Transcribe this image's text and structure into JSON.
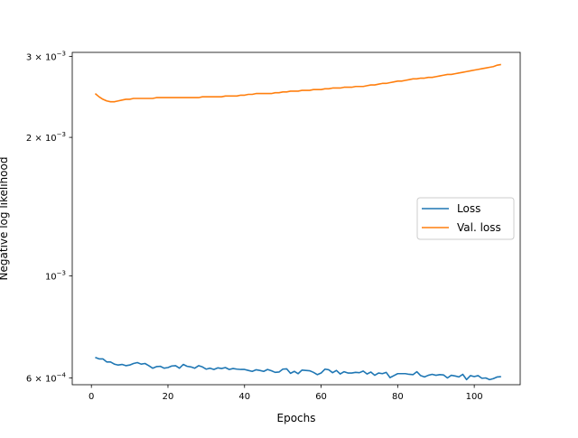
{
  "chart_data": {
    "type": "line",
    "title": "",
    "xlabel": "Epochs",
    "ylabel": "Negative log likelihood",
    "xlim": [
      -5,
      112
    ],
    "ylim": [
      0.00058,
      0.00306
    ],
    "yscale": "log",
    "grid": false,
    "legend_position": "center-right",
    "xticks": [
      0,
      20,
      40,
      60,
      80,
      100
    ],
    "xtick_labels": [
      "0",
      "20",
      "40",
      "60",
      "80",
      "100"
    ],
    "yticks": [
      0.0006,
      0.001,
      0.002,
      0.003
    ],
    "ytick_labels": [
      {
        "base": "6 × 10",
        "exp": "−4"
      },
      {
        "base": "10",
        "exp": "−3"
      },
      {
        "base": "2 × 10",
        "exp": "−3"
      },
      {
        "base": "3 × 10",
        "exp": "−3"
      }
    ],
    "series": [
      {
        "name": "Loss",
        "color": "#1f77b4",
        "x": [
          1,
          2,
          3,
          4,
          5,
          6,
          7,
          8,
          9,
          10,
          11,
          12,
          13,
          14,
          15,
          16,
          17,
          18,
          19,
          20,
          21,
          22,
          23,
          24,
          25,
          26,
          27,
          28,
          29,
          30,
          31,
          32,
          33,
          34,
          35,
          36,
          37,
          38,
          39,
          40,
          41,
          42,
          43,
          44,
          45,
          46,
          47,
          48,
          49,
          50,
          51,
          52,
          53,
          54,
          55,
          56,
          57,
          58,
          59,
          60,
          61,
          62,
          63,
          64,
          65,
          66,
          67,
          68,
          69,
          70,
          71,
          72,
          73,
          74,
          75,
          76,
          77,
          78,
          79,
          80,
          81,
          82,
          83,
          84,
          85,
          86,
          87,
          88,
          89,
          90,
          91,
          92,
          93,
          94,
          95,
          96,
          97,
          98,
          99,
          100,
          101,
          102,
          103,
          104,
          105,
          106,
          107
        ],
        "values": [
          0.000665,
          0.00066,
          0.00066,
          0.00065,
          0.00065,
          0.000643,
          0.00064,
          0.000642,
          0.000638,
          0.00064,
          0.000645,
          0.000648,
          0.000643,
          0.000645,
          0.000638,
          0.00063,
          0.000635,
          0.000636,
          0.00063,
          0.000632,
          0.000637,
          0.000638,
          0.00063,
          0.000642,
          0.000636,
          0.000634,
          0.00063,
          0.000638,
          0.000634,
          0.000627,
          0.00063,
          0.000626,
          0.000631,
          0.000629,
          0.000632,
          0.000626,
          0.000629,
          0.000627,
          0.000626,
          0.000626,
          0.000623,
          0.00062,
          0.000625,
          0.000623,
          0.00062,
          0.000626,
          0.000622,
          0.000617,
          0.000618,
          0.000627,
          0.000628,
          0.000614,
          0.00062,
          0.000613,
          0.000624,
          0.000623,
          0.000622,
          0.000617,
          0.00061,
          0.000615,
          0.000627,
          0.000625,
          0.000616,
          0.000623,
          0.000612,
          0.000619,
          0.000615,
          0.000615,
          0.000617,
          0.000616,
          0.000621,
          0.000612,
          0.000618,
          0.000608,
          0.000615,
          0.000613,
          0.000617,
          0.000601,
          0.000607,
          0.000613,
          0.000613,
          0.000613,
          0.000611,
          0.00061,
          0.000619,
          0.000607,
          0.000603,
          0.000608,
          0.000611,
          0.000608,
          0.00061,
          0.000609,
          0.0006,
          0.000608,
          0.000606,
          0.000603,
          0.000611,
          0.000595,
          0.000607,
          0.000604,
          0.000607,
          0.000599,
          0.0006,
          0.000595,
          0.000598,
          0.000603,
          0.000604
        ]
      },
      {
        "name": "Val. loss",
        "color": "#ff7f0e",
        "x": [
          1,
          2,
          3,
          4,
          5,
          6,
          7,
          8,
          9,
          10,
          11,
          12,
          13,
          14,
          15,
          16,
          17,
          18,
          19,
          20,
          21,
          22,
          23,
          24,
          25,
          26,
          27,
          28,
          29,
          30,
          31,
          32,
          33,
          34,
          35,
          36,
          37,
          38,
          39,
          40,
          41,
          42,
          43,
          44,
          45,
          46,
          47,
          48,
          49,
          50,
          51,
          52,
          53,
          54,
          55,
          56,
          57,
          58,
          59,
          60,
          61,
          62,
          63,
          64,
          65,
          66,
          67,
          68,
          69,
          70,
          71,
          72,
          73,
          74,
          75,
          76,
          77,
          78,
          79,
          80,
          81,
          82,
          83,
          84,
          85,
          86,
          87,
          88,
          89,
          90,
          91,
          92,
          93,
          94,
          95,
          96,
          97,
          98,
          99,
          100,
          101,
          102,
          103,
          104,
          105,
          106,
          107
        ],
        "values": [
          0.00249,
          0.00245,
          0.00242,
          0.0024,
          0.00239,
          0.00239,
          0.0024,
          0.00241,
          0.00242,
          0.00242,
          0.00243,
          0.00243,
          0.00243,
          0.00243,
          0.00243,
          0.00243,
          0.00244,
          0.00244,
          0.00244,
          0.00244,
          0.00244,
          0.00244,
          0.00244,
          0.00244,
          0.00244,
          0.00244,
          0.00244,
          0.00244,
          0.00245,
          0.00245,
          0.00245,
          0.00245,
          0.00245,
          0.00245,
          0.00246,
          0.00246,
          0.00246,
          0.00246,
          0.00247,
          0.00247,
          0.00248,
          0.00248,
          0.00249,
          0.00249,
          0.00249,
          0.00249,
          0.00249,
          0.0025,
          0.0025,
          0.00251,
          0.00251,
          0.00252,
          0.00252,
          0.00252,
          0.00253,
          0.00253,
          0.00253,
          0.00254,
          0.00254,
          0.00254,
          0.00255,
          0.00255,
          0.00256,
          0.00256,
          0.00256,
          0.00257,
          0.00257,
          0.00257,
          0.00258,
          0.00258,
          0.00258,
          0.00259,
          0.0026,
          0.0026,
          0.00261,
          0.00262,
          0.00262,
          0.00263,
          0.00264,
          0.00265,
          0.00265,
          0.00266,
          0.00267,
          0.00268,
          0.00268,
          0.00269,
          0.00269,
          0.0027,
          0.0027,
          0.00271,
          0.00272,
          0.00273,
          0.00274,
          0.00274,
          0.00275,
          0.00276,
          0.00277,
          0.00278,
          0.00279,
          0.0028,
          0.00281,
          0.00282,
          0.00283,
          0.00284,
          0.00285,
          0.00287,
          0.00288
        ]
      }
    ]
  }
}
